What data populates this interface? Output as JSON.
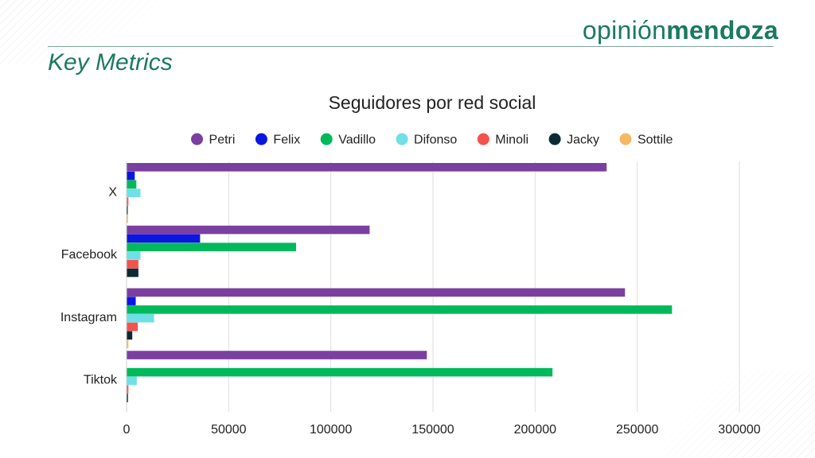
{
  "brand": {
    "light": "opinión",
    "bold": "mendoza"
  },
  "page_title": "Key Metrics",
  "chart_data": {
    "type": "bar",
    "orientation": "horizontal",
    "title": "Seguidores por red social",
    "xlabel": "",
    "ylabel": "",
    "categories": [
      "X",
      "Facebook",
      "Instagram",
      "Tiktok"
    ],
    "xlim": [
      0,
      300000
    ],
    "ticks": [
      0,
      50000,
      100000,
      150000,
      200000,
      250000,
      300000
    ],
    "tick_labels": [
      "0",
      "50000",
      "100000",
      "150000",
      "200000",
      "250000",
      "300000"
    ],
    "grid": true,
    "legend_position": "top",
    "series": [
      {
        "name": "Petri",
        "color": "#7b3fa0",
        "values": [
          235000,
          119000,
          244000,
          147000
        ]
      },
      {
        "name": "Felix",
        "color": "#0b16e0",
        "values": [
          4000,
          36000,
          4500,
          0
        ]
      },
      {
        "name": "Vadillo",
        "color": "#00b95a",
        "values": [
          4800,
          83000,
          267000,
          208500
        ]
      },
      {
        "name": "Difonso",
        "color": "#6ee0e6",
        "values": [
          6800,
          6800,
          13500,
          5000
        ]
      },
      {
        "name": "Minoli",
        "color": "#f4534b",
        "values": [
          900,
          5800,
          5500,
          900
        ]
      },
      {
        "name": "Jacky",
        "color": "#0b2a36",
        "values": [
          600,
          5800,
          2800,
          700
        ]
      },
      {
        "name": "Sottile",
        "color": "#f6b963",
        "values": [
          700,
          0,
          900,
          0
        ]
      }
    ]
  }
}
